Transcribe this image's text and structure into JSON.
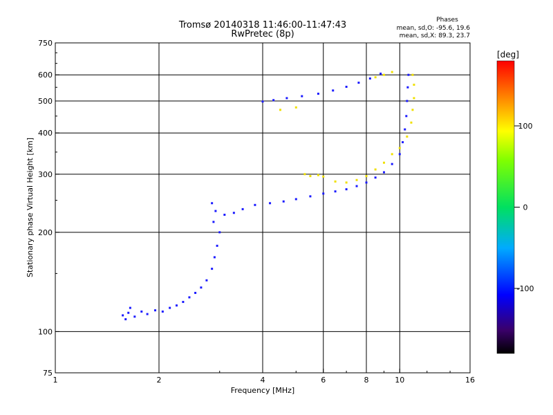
{
  "chart_data": {
    "type": "scatter",
    "title": "Tromsø 20140318 11:46:00-11:47:43",
    "subtitle": "RwPretec (8p)",
    "xlabel": "Frequency [MHz]",
    "ylabel": "Stationary phase Virtual Height [km]",
    "x_scale": "log",
    "y_scale": "log",
    "xlim": [
      1,
      16
    ],
    "ylim": [
      75,
      750
    ],
    "x_ticks": [
      1,
      2,
      4,
      6,
      8,
      10,
      16
    ],
    "x_tick_labels": [
      "1",
      "2",
      "4",
      "6",
      "8",
      "10",
      "16"
    ],
    "y_ticks": [
      75,
      100,
      200,
      300,
      400,
      500,
      600,
      750
    ],
    "y_tick_labels": [
      "75",
      "100",
      "200",
      "300",
      "400",
      "500",
      "600",
      "750"
    ],
    "x_gridlines": [
      2,
      4,
      6,
      8,
      10
    ],
    "y_gridlines": [
      100,
      200,
      300,
      400,
      500,
      600
    ],
    "grid": true,
    "phases_box": {
      "title": "Phases",
      "line_o": "mean, sd,O: -95.6, 19.6",
      "line_x": "mean, sd,X:  89.3, 23.7"
    },
    "colorbar": {
      "label": "[deg]",
      "range": [
        -180,
        180
      ],
      "ticks": [
        100,
        0,
        -100
      ],
      "tick_labels": [
        "100",
        "0",
        "-100"
      ]
    },
    "series": [
      {
        "phase": "O-mode",
        "color_phase": -100,
        "points": [
          [
            1.57,
            112
          ],
          [
            1.6,
            109
          ],
          [
            1.63,
            114
          ],
          [
            1.65,
            118
          ],
          [
            1.7,
            111
          ],
          [
            1.78,
            115
          ],
          [
            1.85,
            113
          ],
          [
            1.95,
            116
          ],
          [
            2.05,
            115
          ],
          [
            2.15,
            118
          ],
          [
            2.25,
            120
          ],
          [
            2.35,
            123
          ],
          [
            2.45,
            127
          ],
          [
            2.55,
            131
          ],
          [
            2.65,
            136
          ],
          [
            2.75,
            143
          ],
          [
            2.85,
            155
          ],
          [
            2.9,
            168
          ],
          [
            2.95,
            182
          ],
          [
            3.0,
            200
          ],
          [
            2.88,
            215
          ],
          [
            2.85,
            245
          ],
          [
            2.92,
            232
          ],
          [
            3.1,
            226
          ],
          [
            3.3,
            229
          ],
          [
            3.5,
            235
          ],
          [
            3.8,
            242
          ],
          [
            4.2,
            245
          ],
          [
            4.6,
            248
          ],
          [
            5.0,
            252
          ],
          [
            5.5,
            257
          ],
          [
            6.0,
            262
          ],
          [
            6.5,
            266
          ],
          [
            7.0,
            270
          ],
          [
            7.5,
            276
          ],
          [
            8.0,
            283
          ],
          [
            8.5,
            293
          ],
          [
            9.0,
            304
          ],
          [
            9.5,
            322
          ],
          [
            10.0,
            345
          ],
          [
            10.2,
            375
          ],
          [
            10.35,
            410
          ],
          [
            10.45,
            450
          ],
          [
            10.5,
            500
          ],
          [
            10.55,
            550
          ],
          [
            10.6,
            600
          ],
          [
            4.0,
            498
          ],
          [
            4.3,
            503
          ],
          [
            4.7,
            510
          ],
          [
            5.2,
            517
          ],
          [
            5.8,
            526
          ],
          [
            6.4,
            538
          ],
          [
            7.0,
            552
          ],
          [
            7.6,
            568
          ],
          [
            8.2,
            585
          ],
          [
            8.8,
            605
          ]
        ]
      },
      {
        "phase": "X-mode",
        "color_phase": 90,
        "points": [
          [
            5.3,
            300
          ],
          [
            5.5,
            296
          ],
          [
            5.8,
            298
          ],
          [
            6.0,
            295
          ],
          [
            6.5,
            285
          ],
          [
            7.0,
            283
          ],
          [
            7.5,
            288
          ],
          [
            8.0,
            296
          ],
          [
            8.5,
            310
          ],
          [
            9.0,
            325
          ],
          [
            9.5,
            345
          ],
          [
            10.0,
            360
          ],
          [
            10.5,
            390
          ],
          [
            10.8,
            430
          ],
          [
            10.9,
            470
          ],
          [
            11.0,
            510
          ],
          [
            11.0,
            560
          ],
          [
            10.9,
            600
          ],
          [
            8.5,
            590
          ],
          [
            9.0,
            600
          ],
          [
            9.5,
            612
          ],
          [
            4.5,
            470
          ],
          [
            5.0,
            478
          ]
        ]
      }
    ]
  }
}
